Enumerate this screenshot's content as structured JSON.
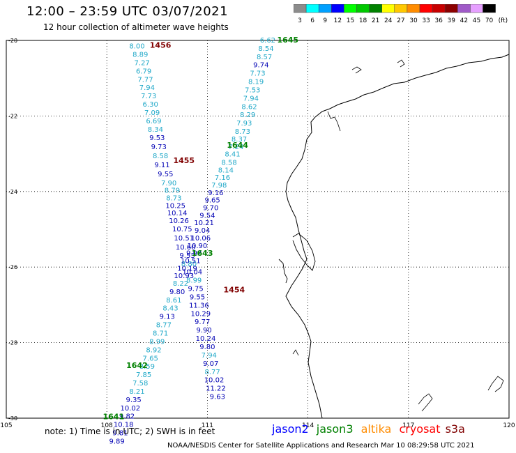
{
  "header": {
    "title": "12:00 – 23:59 UTC 03/07/2021",
    "subtitle": "12 hour collection of altimeter wave heights"
  },
  "legend": {
    "bins": [
      {
        "label": "3",
        "color": "#8c8c8c"
      },
      {
        "label": "6",
        "color": "#00ffff"
      },
      {
        "label": "9",
        "color": "#00a0ff"
      },
      {
        "label": "12",
        "color": "#0000ff"
      },
      {
        "label": "15",
        "color": "#00ff00"
      },
      {
        "label": "18",
        "color": "#00c800"
      },
      {
        "label": "21",
        "color": "#008200"
      },
      {
        "label": "24",
        "color": "#ffff00"
      },
      {
        "label": "27",
        "color": "#ffc800"
      },
      {
        "label": "30",
        "color": "#ff8c00"
      },
      {
        "label": "33",
        "color": "#ff0000"
      },
      {
        "label": "36",
        "color": "#c80000"
      },
      {
        "label": "39",
        "color": "#8c0000"
      },
      {
        "label": "42",
        "color": "#a05ac8"
      },
      {
        "label": "45",
        "color": "#e6a0ff"
      },
      {
        "label": "70",
        "color": "#000000"
      }
    ],
    "unit": "(ft)"
  },
  "axes": {
    "lat_labels": [
      "-20",
      "-22",
      "-24",
      "-26",
      "-28",
      "-30"
    ],
    "lon_labels": [
      "105",
      "108",
      "111",
      "114",
      "117",
      "120"
    ]
  },
  "colors": {
    "cyan": "#1fa8c8",
    "navy": "#0000b4",
    "time_green": "#008000",
    "time_maroon": "#800000",
    "jason2": "#0000ff",
    "jason3": "#008000",
    "altika": "#ff8c00",
    "cryosat": "#ff0000",
    "s3a": "#800000"
  },
  "tracks": {
    "A": {
      "times": [
        {
          "label": "1456",
          "color": "maroon",
          "lat": -20.12,
          "lon": 109.6
        },
        {
          "label": "1455",
          "color": "maroon",
          "lat": -23.17,
          "lon": 110.3
        },
        {
          "label": "1454",
          "color": "maroon",
          "lat": -26.6,
          "lon": 111.8
        }
      ],
      "points": [
        {
          "v": "8.00",
          "lat": -20.14,
          "lon": 108.9,
          "c": "cyan"
        },
        {
          "v": "8.89",
          "lat": -20.36,
          "lon": 109.0,
          "c": "cyan"
        },
        {
          "v": "7.27",
          "lat": -20.58,
          "lon": 109.05,
          "c": "cyan"
        },
        {
          "v": "6.79",
          "lat": -20.8,
          "lon": 109.1,
          "c": "cyan"
        },
        {
          "v": "7.77",
          "lat": -21.02,
          "lon": 109.15,
          "c": "cyan"
        },
        {
          "v": "7.94",
          "lat": -21.24,
          "lon": 109.2,
          "c": "cyan"
        },
        {
          "v": "7.73",
          "lat": -21.46,
          "lon": 109.25,
          "c": "cyan"
        },
        {
          "v": "6.30",
          "lat": -21.68,
          "lon": 109.3,
          "c": "cyan"
        },
        {
          "v": "7.09",
          "lat": -21.9,
          "lon": 109.35,
          "c": "cyan"
        },
        {
          "v": "6.69",
          "lat": -22.12,
          "lon": 109.4,
          "c": "cyan"
        },
        {
          "v": "8.34",
          "lat": -22.34,
          "lon": 109.45,
          "c": "cyan"
        },
        {
          "v": "9.53",
          "lat": -22.56,
          "lon": 109.5,
          "c": "navy"
        },
        {
          "v": "9.73",
          "lat": -22.8,
          "lon": 109.55,
          "c": "navy"
        },
        {
          "v": "8.58",
          "lat": -23.04,
          "lon": 109.6,
          "c": "cyan"
        },
        {
          "v": "9.11",
          "lat": -23.28,
          "lon": 109.65,
          "c": "navy"
        },
        {
          "v": "9.55",
          "lat": -23.52,
          "lon": 109.75,
          "c": "navy"
        },
        {
          "v": "7.90",
          "lat": -23.76,
          "lon": 109.85,
          "c": "cyan"
        },
        {
          "v": "8.79",
          "lat": -23.96,
          "lon": 109.95,
          "c": "cyan"
        },
        {
          "v": "8.73",
          "lat": -24.16,
          "lon": 110.0,
          "c": "cyan"
        },
        {
          "v": "10.25",
          "lat": -24.36,
          "lon": 110.05,
          "c": "navy"
        },
        {
          "v": "10.14",
          "lat": -24.56,
          "lon": 110.1,
          "c": "navy"
        },
        {
          "v": "10.26",
          "lat": -24.76,
          "lon": 110.15,
          "c": "navy"
        },
        {
          "v": "10.75",
          "lat": -24.98,
          "lon": 110.25,
          "c": "navy"
        },
        {
          "v": "10.51",
          "lat": -25.22,
          "lon": 110.3,
          "c": "navy"
        },
        {
          "v": "10.60",
          "lat": -25.46,
          "lon": 110.35,
          "c": "navy"
        },
        {
          "v": "9.53",
          "lat": -25.68,
          "lon": 110.4,
          "c": "navy"
        },
        {
          "v": "8.80",
          "lat": -25.9,
          "lon": 110.45,
          "c": "cyan"
        },
        {
          "v": "10.04",
          "lat": -26.12,
          "lon": 110.55,
          "c": "navy"
        },
        {
          "v": "8.99",
          "lat": -26.34,
          "lon": 110.6,
          "c": "cyan"
        },
        {
          "v": "9.75",
          "lat": -26.56,
          "lon": 110.65,
          "c": "navy"
        },
        {
          "v": "9.55",
          "lat": -26.78,
          "lon": 110.7,
          "c": "navy"
        },
        {
          "v": "11.36",
          "lat": -27.0,
          "lon": 110.75,
          "c": "navy"
        },
        {
          "v": "10.29",
          "lat": -27.22,
          "lon": 110.8,
          "c": "navy"
        },
        {
          "v": "9.77",
          "lat": -27.44,
          "lon": 110.85,
          "c": "navy"
        },
        {
          "v": "9.90",
          "lat": -27.66,
          "lon": 110.9,
          "c": "navy"
        },
        {
          "v": "10.24",
          "lat": -27.88,
          "lon": 110.95,
          "c": "navy"
        },
        {
          "v": "9.80",
          "lat": -28.1,
          "lon": 111.0,
          "c": "navy"
        },
        {
          "v": "7.94",
          "lat": -28.32,
          "lon": 111.05,
          "c": "cyan"
        },
        {
          "v": "9.07",
          "lat": -28.54,
          "lon": 111.1,
          "c": "navy"
        },
        {
          "v": "8.77",
          "lat": -28.76,
          "lon": 111.15,
          "c": "cyan"
        },
        {
          "v": "10.02",
          "lat": -28.98,
          "lon": 111.2,
          "c": "navy"
        },
        {
          "v": "11.22",
          "lat": -29.2,
          "lon": 111.25,
          "c": "navy"
        },
        {
          "v": "9.63",
          "lat": -29.42,
          "lon": 111.3,
          "c": "navy"
        }
      ]
    },
    "B": {
      "times": [
        {
          "label": "1645",
          "color": "green",
          "lat": -19.98,
          "lon": 113.4
        },
        {
          "label": "1644",
          "color": "green",
          "lat": -22.77,
          "lon": 111.9
        },
        {
          "label": "1643",
          "color": "green",
          "lat": -25.63,
          "lon": 110.85
        },
        {
          "label": "1642",
          "color": "green",
          "lat": -28.6,
          "lon": 108.9
        },
        {
          "label": "1641",
          "color": "green",
          "lat": -29.95,
          "lon": 108.2
        }
      ],
      "points": [
        {
          "v": "6.62",
          "lat": -19.98,
          "lon": 112.8,
          "c": "cyan"
        },
        {
          "v": "8.54",
          "lat": -20.2,
          "lon": 112.75,
          "c": "cyan"
        },
        {
          "v": "8.57",
          "lat": -20.42,
          "lon": 112.7,
          "c": "cyan"
        },
        {
          "v": "9.74",
          "lat": -20.64,
          "lon": 112.6,
          "c": "navy"
        },
        {
          "v": "7.73",
          "lat": -20.86,
          "lon": 112.5,
          "c": "cyan"
        },
        {
          "v": "8.19",
          "lat": -21.08,
          "lon": 112.45,
          "c": "cyan"
        },
        {
          "v": "7.53",
          "lat": -21.3,
          "lon": 112.35,
          "c": "cyan"
        },
        {
          "v": "7.94",
          "lat": -21.52,
          "lon": 112.3,
          "c": "cyan"
        },
        {
          "v": "8.62",
          "lat": -21.74,
          "lon": 112.25,
          "c": "cyan"
        },
        {
          "v": "8.29",
          "lat": -21.96,
          "lon": 112.2,
          "c": "cyan"
        },
        {
          "v": "7.93",
          "lat": -22.18,
          "lon": 112.1,
          "c": "cyan"
        },
        {
          "v": "8.73",
          "lat": -22.4,
          "lon": 112.05,
          "c": "cyan"
        },
        {
          "v": "8.37",
          "lat": -22.6,
          "lon": 111.95,
          "c": "cyan"
        },
        {
          "v": "7.24",
          "lat": -22.8,
          "lon": 111.85,
          "c": "cyan"
        },
        {
          "v": "8.41",
          "lat": -23.0,
          "lon": 111.75,
          "c": "cyan"
        },
        {
          "v": "8.58",
          "lat": -23.22,
          "lon": 111.65,
          "c": "cyan"
        },
        {
          "v": "8.14",
          "lat": -23.42,
          "lon": 111.55,
          "c": "cyan"
        },
        {
          "v": "7.16",
          "lat": -23.62,
          "lon": 111.45,
          "c": "cyan"
        },
        {
          "v": "7.98",
          "lat": -23.82,
          "lon": 111.35,
          "c": "cyan"
        },
        {
          "v": "9.16",
          "lat": -24.02,
          "lon": 111.25,
          "c": "navy"
        },
        {
          "v": "9.65",
          "lat": -24.22,
          "lon": 111.15,
          "c": "navy"
        },
        {
          "v": "9.70",
          "lat": -24.42,
          "lon": 111.1,
          "c": "navy"
        },
        {
          "v": "9.54",
          "lat": -24.62,
          "lon": 111.0,
          "c": "navy"
        },
        {
          "v": "10.21",
          "lat": -24.82,
          "lon": 110.9,
          "c": "navy"
        },
        {
          "v": "9.04",
          "lat": -25.02,
          "lon": 110.85,
          "c": "navy"
        },
        {
          "v": "10.06",
          "lat": -25.22,
          "lon": 110.8,
          "c": "navy"
        },
        {
          "v": "10.90",
          "lat": -25.42,
          "lon": 110.7,
          "c": "navy"
        },
        {
          "v": "9.92",
          "lat": -25.62,
          "lon": 110.6,
          "c": "navy"
        },
        {
          "v": "10.51",
          "lat": -25.82,
          "lon": 110.5,
          "c": "navy"
        },
        {
          "v": "10.19",
          "lat": -26.02,
          "lon": 110.4,
          "c": "navy"
        },
        {
          "v": "10.93",
          "lat": -26.22,
          "lon": 110.3,
          "c": "navy"
        },
        {
          "v": "8.22",
          "lat": -26.42,
          "lon": 110.2,
          "c": "cyan"
        },
        {
          "v": "9.80",
          "lat": -26.64,
          "lon": 110.1,
          "c": "navy"
        },
        {
          "v": "8.61",
          "lat": -26.86,
          "lon": 110.0,
          "c": "cyan"
        },
        {
          "v": "8.43",
          "lat": -27.08,
          "lon": 109.9,
          "c": "cyan"
        },
        {
          "v": "9.13",
          "lat": -27.3,
          "lon": 109.8,
          "c": "navy"
        },
        {
          "v": "8.77",
          "lat": -27.52,
          "lon": 109.7,
          "c": "cyan"
        },
        {
          "v": "8.71",
          "lat": -27.74,
          "lon": 109.6,
          "c": "cyan"
        },
        {
          "v": "8.99",
          "lat": -27.96,
          "lon": 109.5,
          "c": "cyan"
        },
        {
          "v": "8.92",
          "lat": -28.18,
          "lon": 109.4,
          "c": "cyan"
        },
        {
          "v": "7.65",
          "lat": -28.4,
          "lon": 109.3,
          "c": "cyan"
        },
        {
          "v": "8.59",
          "lat": -28.62,
          "lon": 109.2,
          "c": "cyan"
        },
        {
          "v": "7.85",
          "lat": -28.84,
          "lon": 109.1,
          "c": "cyan"
        },
        {
          "v": "7.58",
          "lat": -29.06,
          "lon": 109.0,
          "c": "cyan"
        },
        {
          "v": "8.21",
          "lat": -29.28,
          "lon": 108.9,
          "c": "cyan"
        },
        {
          "v": "9.35",
          "lat": -29.5,
          "lon": 108.8,
          "c": "navy"
        },
        {
          "v": "10.02",
          "lat": -29.72,
          "lon": 108.7,
          "c": "navy"
        },
        {
          "v": "9.82",
          "lat": -29.94,
          "lon": 108.6,
          "c": "navy"
        },
        {
          "v": "10.18",
          "lat": -30.16,
          "lon": 108.5,
          "c": "navy"
        },
        {
          "v": "9.81",
          "lat": -30.38,
          "lon": 108.4,
          "c": "navy"
        },
        {
          "v": "9.89",
          "lat": -30.6,
          "lon": 108.3,
          "c": "navy"
        }
      ]
    }
  },
  "footer": {
    "note": "note: 1) Time is in UTC; 2) SWH is in feet",
    "satellites": [
      {
        "name": "jason2",
        "color": "jason2"
      },
      {
        "name": "jason3",
        "color": "jason3"
      },
      {
        "name": "altika",
        "color": "altika"
      },
      {
        "name": "cryosat",
        "color": "cryosat"
      },
      {
        "name": "s3a",
        "color": "s3a"
      }
    ],
    "credit": "NOAA/NESDIS Center for Satellite Applications and Research    Mar 10 08:29:58 UTC 2021"
  }
}
